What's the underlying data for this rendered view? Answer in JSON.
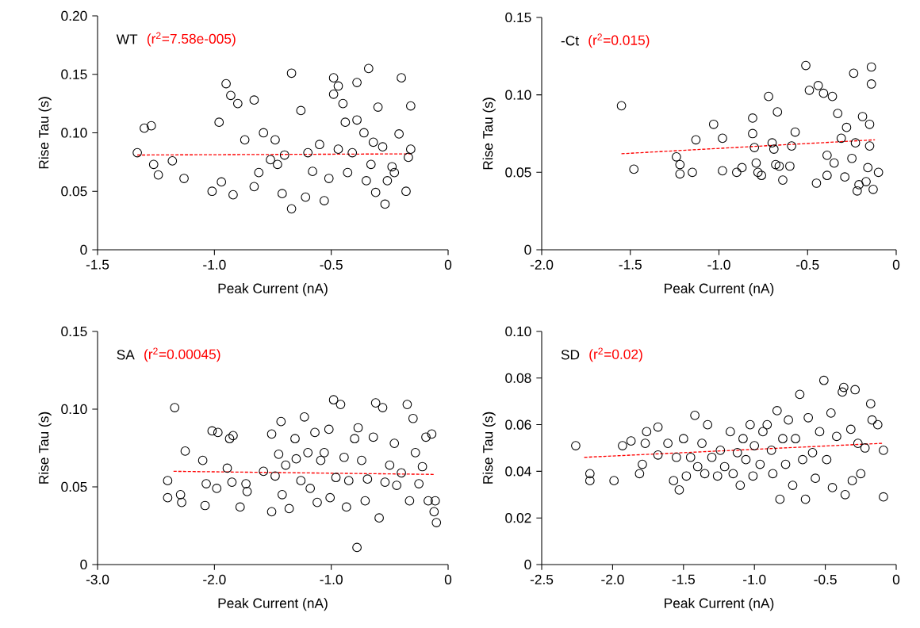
{
  "chart_data": [
    {
      "type": "scatter",
      "title": "WT",
      "annotations": [
        "(r$^{2}$=7.58e-005)"
      ],
      "xlabel": "Peak Current (nA)",
      "ylabel": "Rise Tau (s)",
      "xlim": [
        -1.5,
        0
      ],
      "ylim": [
        0,
        0.2
      ],
      "xticks": [
        {
          "value": -1.5,
          "label": "-1.5"
        },
        {
          "value": -1.0,
          "label": "-1.0"
        },
        {
          "value": -0.5,
          "label": "-0.5"
        },
        {
          "value": 0,
          "label": "0"
        }
      ],
      "yticks": [
        {
          "value": 0,
          "label": "0"
        },
        {
          "value": 0.05,
          "label": "0.05"
        },
        {
          "value": 0.1,
          "label": "0.10"
        },
        {
          "value": 0.15,
          "label": "0.15"
        },
        {
          "value": 0.2,
          "label": "0.20"
        }
      ],
      "series": [
        {
          "marker": "circle",
          "color": "#000000",
          "x": [
            -1.33,
            -1.3,
            -1.27,
            -1.26,
            -1.24,
            -1.18,
            -1.13,
            -1.01,
            -0.97,
            -0.98,
            -0.95,
            -0.93,
            -0.92,
            -0.9,
            -0.87,
            -0.83,
            -0.83,
            -0.81,
            -0.79,
            -0.76,
            -0.74,
            -0.73,
            -0.71,
            -0.7,
            -0.67,
            -0.67,
            -0.63,
            -0.61,
            -0.6,
            -0.58,
            -0.55,
            -0.53,
            -0.51,
            -0.49,
            -0.49,
            -0.47,
            -0.47,
            -0.45,
            -0.44,
            -0.43,
            -0.41,
            -0.39,
            -0.39,
            -0.36,
            -0.35,
            -0.34,
            -0.33,
            -0.32,
            -0.31,
            -0.3,
            -0.28,
            -0.27,
            -0.26,
            -0.24,
            -0.23,
            -0.21,
            -0.2,
            -0.18,
            -0.17,
            -0.16,
            -0.16
          ],
          "values": [
            0.083,
            0.104,
            0.106,
            0.073,
            0.064,
            0.076,
            0.061,
            0.05,
            0.058,
            0.109,
            0.142,
            0.132,
            0.047,
            0.125,
            0.094,
            0.054,
            0.128,
            0.066,
            0.1,
            0.077,
            0.094,
            0.073,
            0.048,
            0.081,
            0.151,
            0.035,
            0.119,
            0.045,
            0.083,
            0.067,
            0.09,
            0.042,
            0.061,
            0.133,
            0.147,
            0.14,
            0.086,
            0.125,
            0.109,
            0.066,
            0.083,
            0.111,
            0.143,
            0.1,
            0.059,
            0.155,
            0.073,
            0.092,
            0.049,
            0.122,
            0.088,
            0.039,
            0.059,
            0.071,
            0.066,
            0.099,
            0.147,
            0.05,
            0.079,
            0.123,
            0.086
          ]
        },
        {
          "type": "line",
          "color": "#ff0000",
          "line_style": "dashed",
          "x": [
            -1.33,
            -0.16
          ],
          "values": [
            0.081,
            0.082
          ]
        }
      ]
    },
    {
      "type": "scatter",
      "title": "-Ct",
      "annotations": [
        "(r$^{2}$=0.015)"
      ],
      "xlabel": "Peak Current (nA)",
      "ylabel": "Rise Tau (s)",
      "xlim": [
        -2,
        0
      ],
      "ylim": [
        0,
        0.15
      ],
      "xticks": [
        {
          "value": -2.0,
          "label": "-2.0"
        },
        {
          "value": -1.5,
          "label": "-1.5"
        },
        {
          "value": -1.0,
          "label": "-1.0"
        },
        {
          "value": -0.5,
          "label": "-0.5"
        },
        {
          "value": 0,
          "label": "0"
        }
      ],
      "yticks": [
        {
          "value": 0,
          "label": "0"
        },
        {
          "value": 0.05,
          "label": "0.05"
        },
        {
          "value": 0.1,
          "label": "0.10"
        },
        {
          "value": 0.15,
          "label": "0.15"
        }
      ],
      "series": [
        {
          "marker": "circle",
          "color": "#000000",
          "x": [
            -1.55,
            -1.48,
            -1.24,
            -1.22,
            -1.22,
            -1.15,
            -1.13,
            -1.03,
            -0.98,
            -0.98,
            -0.9,
            -0.87,
            -0.81,
            -0.81,
            -0.8,
            -0.79,
            -0.78,
            -0.76,
            -0.72,
            -0.7,
            -0.69,
            -0.67,
            -0.68,
            -0.66,
            -0.64,
            -0.6,
            -0.59,
            -0.57,
            -0.51,
            -0.49,
            -0.45,
            -0.44,
            -0.41,
            -0.39,
            -0.39,
            -0.36,
            -0.35,
            -0.33,
            -0.31,
            -0.29,
            -0.28,
            -0.25,
            -0.24,
            -0.23,
            -0.22,
            -0.21,
            -0.19,
            -0.17,
            -0.16,
            -0.15,
            -0.15,
            -0.14,
            -0.14,
            -0.13,
            -0.1
          ],
          "values": [
            0.093,
            0.052,
            0.06,
            0.055,
            0.049,
            0.05,
            0.071,
            0.081,
            0.051,
            0.072,
            0.05,
            0.053,
            0.085,
            0.075,
            0.066,
            0.056,
            0.05,
            0.048,
            0.099,
            0.069,
            0.065,
            0.089,
            0.055,
            0.054,
            0.045,
            0.054,
            0.067,
            0.076,
            0.119,
            0.103,
            0.043,
            0.106,
            0.101,
            0.048,
            0.061,
            0.099,
            0.056,
            0.088,
            0.072,
            0.047,
            0.079,
            0.059,
            0.114,
            0.069,
            0.038,
            0.042,
            0.086,
            0.044,
            0.053,
            0.081,
            0.067,
            0.107,
            0.118,
            0.039,
            0.05
          ]
        },
        {
          "type": "line",
          "color": "#ff0000",
          "line_style": "dashed",
          "x": [
            -1.55,
            -0.12
          ],
          "values": [
            0.062,
            0.071
          ]
        }
      ]
    },
    {
      "type": "scatter",
      "title": "SA",
      "annotations": [
        "(r$^{2}$=0.00045)"
      ],
      "xlabel": "Peak Current (nA)",
      "ylabel": "Rise Tau (s)",
      "xlim": [
        -3,
        0
      ],
      "ylim": [
        0,
        0.15
      ],
      "xticks": [
        {
          "value": -3.0,
          "label": "-3.0"
        },
        {
          "value": -2.0,
          "label": "-2.0"
        },
        {
          "value": -1.0,
          "label": "-1.0"
        },
        {
          "value": 0,
          "label": "0"
        }
      ],
      "yticks": [
        {
          "value": 0,
          "label": "0"
        },
        {
          "value": 0.05,
          "label": "0.05"
        },
        {
          "value": 0.1,
          "label": "0.10"
        },
        {
          "value": 0.15,
          "label": "0.15"
        }
      ],
      "series": [
        {
          "marker": "circle",
          "color": "#000000",
          "x": [
            -2.34,
            -2.4,
            -2.4,
            -2.29,
            -2.28,
            -2.25,
            -2.1,
            -2.08,
            -2.07,
            -2.02,
            -1.97,
            -1.98,
            -1.89,
            -1.87,
            -1.84,
            -1.85,
            -1.78,
            -1.73,
            -1.72,
            -1.58,
            -1.51,
            -1.51,
            -1.48,
            -1.45,
            -1.43,
            -1.42,
            -1.39,
            -1.36,
            -1.31,
            -1.3,
            -1.26,
            -1.23,
            -1.2,
            -1.18,
            -1.14,
            -1.12,
            -1.09,
            -1.06,
            -1.02,
            -1.01,
            -0.98,
            -0.96,
            -0.92,
            -0.89,
            -0.87,
            -0.85,
            -0.8,
            -0.78,
            -0.77,
            -0.74,
            -0.71,
            -0.69,
            -0.64,
            -0.62,
            -0.59,
            -0.56,
            -0.54,
            -0.5,
            -0.46,
            -0.44,
            -0.4,
            -0.35,
            -0.33,
            -0.3,
            -0.28,
            -0.25,
            -0.22,
            -0.19,
            -0.17,
            -0.14,
            -0.12,
            -0.11,
            -0.1
          ],
          "values": [
            0.101,
            0.054,
            0.043,
            0.045,
            0.04,
            0.073,
            0.067,
            0.038,
            0.052,
            0.086,
            0.085,
            0.049,
            0.062,
            0.081,
            0.083,
            0.053,
            0.037,
            0.052,
            0.047,
            0.06,
            0.084,
            0.034,
            0.057,
            0.071,
            0.092,
            0.045,
            0.064,
            0.036,
            0.081,
            0.068,
            0.054,
            0.095,
            0.072,
            0.049,
            0.085,
            0.04,
            0.067,
            0.072,
            0.087,
            0.043,
            0.106,
            0.056,
            0.103,
            0.069,
            0.037,
            0.054,
            0.081,
            0.011,
            0.088,
            0.067,
            0.041,
            0.055,
            0.082,
            0.104,
            0.03,
            0.101,
            0.053,
            0.064,
            0.078,
            0.051,
            0.059,
            0.103,
            0.041,
            0.094,
            0.072,
            0.052,
            0.063,
            0.082,
            0.041,
            0.084,
            0.034,
            0.041,
            0.027
          ]
        },
        {
          "type": "line",
          "color": "#ff0000",
          "line_style": "dashed",
          "x": [
            -2.35,
            -0.12
          ],
          "values": [
            0.06,
            0.058
          ]
        }
      ]
    },
    {
      "type": "scatter",
      "title": "SD",
      "annotations": [
        "(r$^{2}$=0.02)"
      ],
      "xlabel": "Peak Current (nA)",
      "ylabel": "Rise Tau (s)",
      "xlim": [
        -2.5,
        0
      ],
      "ylim": [
        0,
        0.1
      ],
      "xticks": [
        {
          "value": -2.5,
          "label": "-2.5"
        },
        {
          "value": -2.0,
          "label": "-2.0"
        },
        {
          "value": -1.5,
          "label": "-1.5"
        },
        {
          "value": -1.0,
          "label": "-1.0"
        },
        {
          "value": -0.5,
          "label": "-0.5"
        },
        {
          "value": 0,
          "label": "0"
        }
      ],
      "yticks": [
        {
          "value": 0,
          "label": "0"
        },
        {
          "value": 0.02,
          "label": "0.02"
        },
        {
          "value": 0.04,
          "label": "0.04"
        },
        {
          "value": 0.06,
          "label": "0.06"
        },
        {
          "value": 0.08,
          "label": "0.08"
        },
        {
          "value": 0.1,
          "label": "0.10"
        }
      ],
      "series": [
        {
          "marker": "circle",
          "color": "#000000",
          "x": [
            -2.26,
            -2.16,
            -2.16,
            -1.99,
            -1.93,
            -1.87,
            -1.81,
            -1.79,
            -1.77,
            -1.76,
            -1.68,
            -1.68,
            -1.61,
            -1.57,
            -1.55,
            -1.53,
            -1.5,
            -1.48,
            -1.45,
            -1.42,
            -1.4,
            -1.37,
            -1.35,
            -1.33,
            -1.3,
            -1.26,
            -1.24,
            -1.21,
            -1.17,
            -1.15,
            -1.12,
            -1.1,
            -1.08,
            -1.06,
            -1.03,
            -1.01,
            -1.0,
            -0.96,
            -0.94,
            -0.91,
            -0.88,
            -0.87,
            -0.84,
            -0.82,
            -0.8,
            -0.78,
            -0.76,
            -0.73,
            -0.71,
            -0.68,
            -0.66,
            -0.64,
            -0.62,
            -0.59,
            -0.57,
            -0.54,
            -0.51,
            -0.49,
            -0.46,
            -0.45,
            -0.42,
            -0.38,
            -0.37,
            -0.36,
            -0.32,
            -0.31,
            -0.29,
            -0.27,
            -0.25,
            -0.22,
            -0.18,
            -0.17,
            -0.13,
            -0.09,
            -0.09
          ],
          "values": [
            0.051,
            0.039,
            0.036,
            0.036,
            0.051,
            0.053,
            0.039,
            0.043,
            0.052,
            0.057,
            0.059,
            0.047,
            0.052,
            0.036,
            0.046,
            0.032,
            0.054,
            0.038,
            0.046,
            0.064,
            0.042,
            0.052,
            0.039,
            0.06,
            0.046,
            0.038,
            0.049,
            0.042,
            0.057,
            0.039,
            0.048,
            0.034,
            0.054,
            0.045,
            0.06,
            0.038,
            0.051,
            0.043,
            0.057,
            0.06,
            0.049,
            0.039,
            0.066,
            0.028,
            0.054,
            0.043,
            0.062,
            0.034,
            0.054,
            0.073,
            0.045,
            0.028,
            0.063,
            0.048,
            0.037,
            0.057,
            0.079,
            0.045,
            0.065,
            0.033,
            0.055,
            0.074,
            0.076,
            0.03,
            0.058,
            0.036,
            0.075,
            0.052,
            0.039,
            0.05,
            0.069,
            0.062,
            0.06,
            0.049,
            0.029
          ]
        },
        {
          "type": "line",
          "color": "#ff0000",
          "line_style": "dashed",
          "x": [
            -2.2,
            -0.1
          ],
          "values": [
            0.046,
            0.052
          ]
        }
      ]
    }
  ]
}
